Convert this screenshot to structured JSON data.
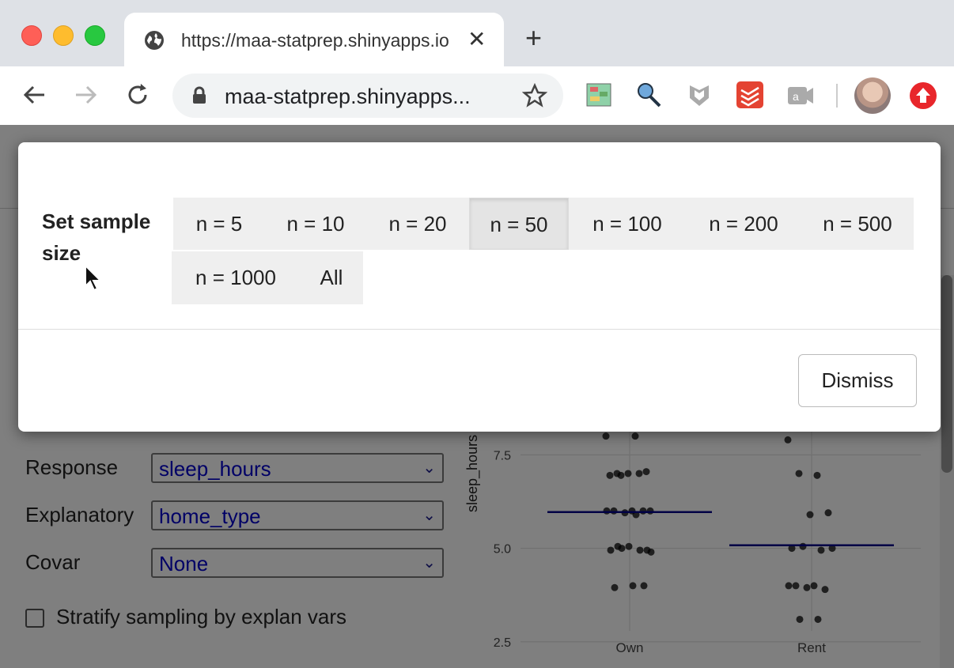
{
  "browser": {
    "tab_title": "https://maa-statprep.shinyapps.io",
    "new_tab_label": "+",
    "url_display": "maa-statprep.shinyapps..."
  },
  "controls": {
    "response_label": "Response",
    "response_value": "sleep_hours",
    "explanatory_label": "Explanatory",
    "explanatory_value": "home_type",
    "covar_label": "Covar",
    "covar_value": "None",
    "stratify_label": "Stratify sampling by explan vars"
  },
  "chart_data": {
    "type": "scatter",
    "ylabel": "sleep_hours",
    "xlabel": "home_type",
    "categories": [
      "Own",
      "Rent"
    ],
    "yticks": [
      "2.5",
      "5.0",
      "7.5"
    ],
    "series": [
      {
        "category": "Own",
        "mean": 5.97,
        "points": [
          8.0,
          8.0,
          7.0,
          7.05,
          7.0,
          6.95,
          7.0,
          6.95,
          6.0,
          6.0,
          6.0,
          6.0,
          5.95,
          6.0,
          5.9,
          5.05,
          4.95,
          5.05,
          4.95,
          4.95,
          5.0,
          4.9,
          4.0,
          3.95,
          4.0
        ]
      },
      {
        "category": "Rent",
        "mean": 5.08,
        "points": [
          7.9,
          6.95,
          7.0,
          5.95,
          5.9,
          5.0,
          4.95,
          5.05,
          5.0,
          4.0,
          4.0,
          3.9,
          3.95,
          4.0,
          3.1,
          3.1
        ]
      }
    ],
    "ylim": [
      1.8,
      8.5
    ],
    "mean_color": "#00008b"
  },
  "modal": {
    "label": "Set sample size",
    "options": [
      "n = 5",
      "n = 10",
      "n = 20",
      "n = 50",
      "n = 100",
      "n = 200",
      "n = 500",
      "n = 1000",
      "All"
    ],
    "selected": "n = 50",
    "dismiss_label": "Dismiss"
  }
}
